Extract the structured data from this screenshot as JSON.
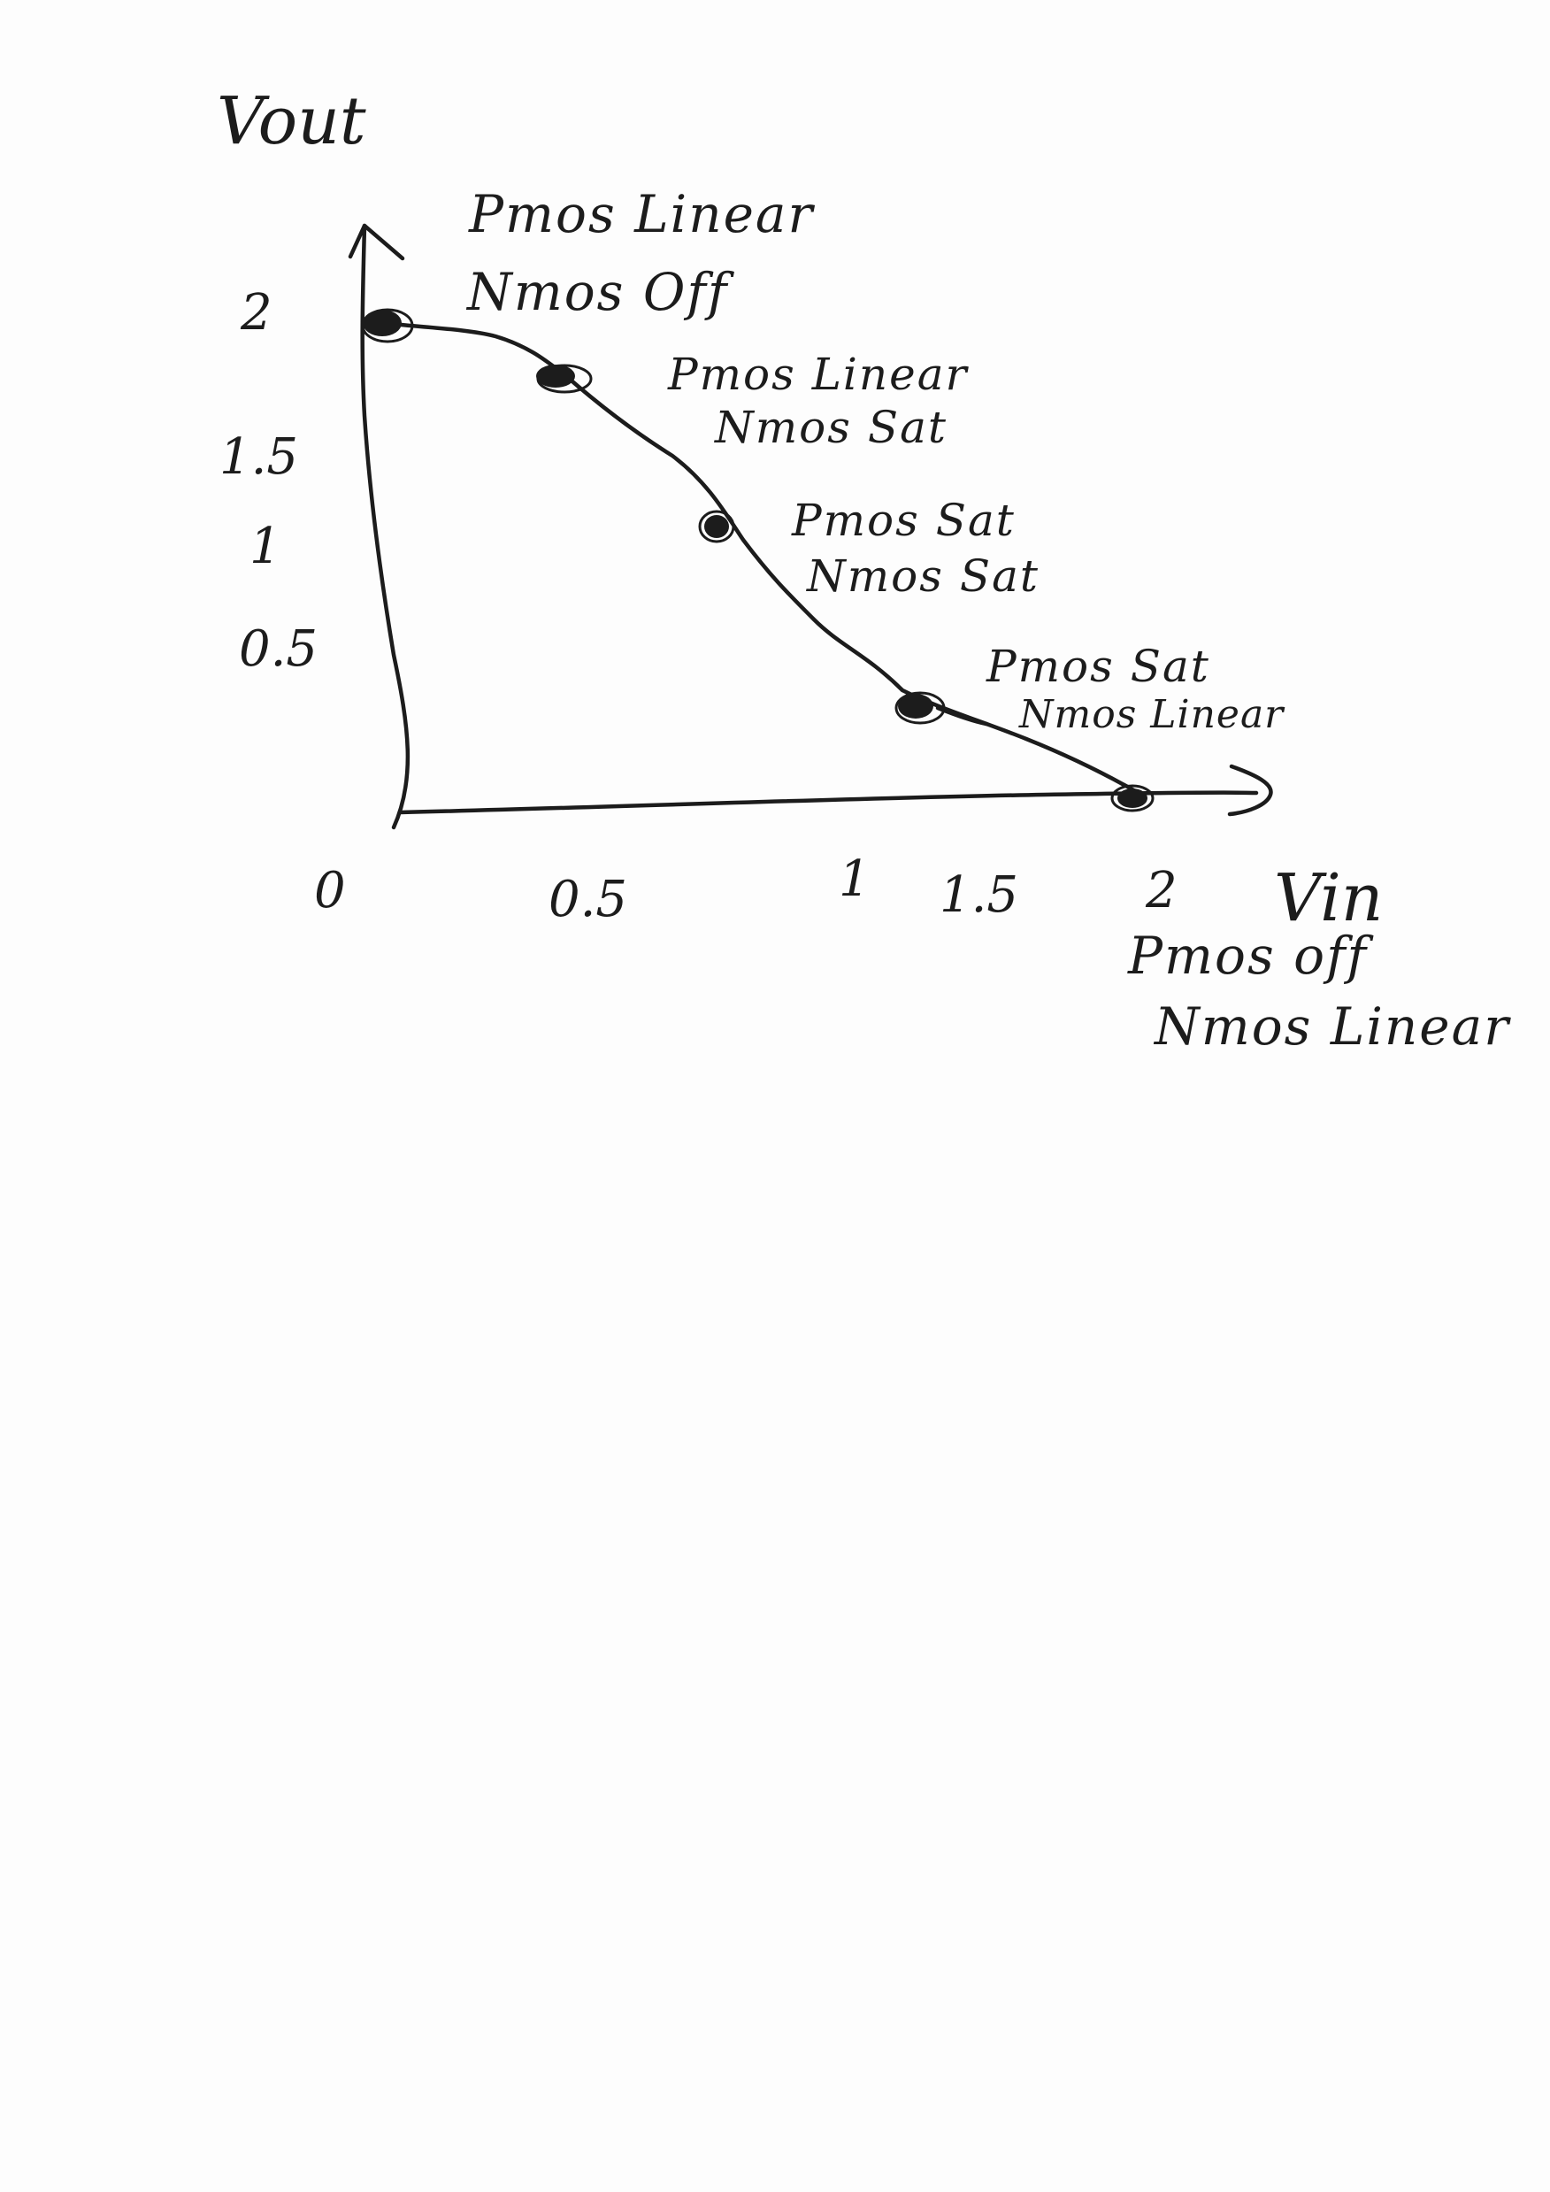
{
  "axes": {
    "y_label": "Vout",
    "x_label": "Vin",
    "y_ticks": [
      "2",
      "1.5",
      "1",
      "0.5"
    ],
    "x_ticks": [
      "0",
      "0.5",
      "1",
      "1.5",
      "2"
    ]
  },
  "region_annotations": [
    {
      "line1": "Pmos Linear",
      "line2": "Nmos Off"
    },
    {
      "line1": "Pmos Linear",
      "line2": "Nmos Sat"
    },
    {
      "line1": "Pmos Sat",
      "line2": "Nmos Sat"
    },
    {
      "line1": "Pmos Sat",
      "line2": "Nmos Linear"
    },
    {
      "line1": "Pmos off",
      "line2": "Nmos Linear"
    }
  ],
  "ink_color": "#1c1c1c"
}
